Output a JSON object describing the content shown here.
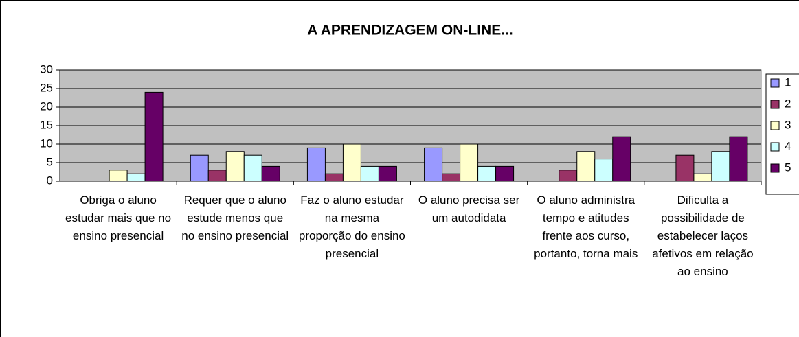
{
  "chart_data": {
    "type": "bar",
    "title": "A APRENDIZAGEM ON-LINE...",
    "categories": [
      "Obriga o aluno estudar mais que no ensino presencial",
      "Requer que o aluno estude menos que no ensino presencial",
      "Faz o aluno estudar na mesma proporção do ensino presencial",
      "O aluno precisa ser um autodidata",
      "O aluno administra tempo e atitudes frente aos curso, portanto, torna mais",
      "Dificulta a possibilidade de estabelecer laços afetivos em relação ao ensino"
    ],
    "series": [
      {
        "name": "1",
        "color": "#9999ff",
        "values": [
          0,
          7,
          9,
          9,
          0,
          0
        ]
      },
      {
        "name": "2",
        "color": "#993366",
        "values": [
          0,
          3,
          2,
          2,
          3,
          7
        ]
      },
      {
        "name": "3",
        "color": "#ffffcc",
        "values": [
          3,
          8,
          10,
          10,
          8,
          2
        ]
      },
      {
        "name": "4",
        "color": "#ccffff",
        "values": [
          2,
          7,
          4,
          4,
          6,
          8
        ]
      },
      {
        "name": "5",
        "color": "#660066",
        "values": [
          24,
          4,
          4,
          4,
          12,
          12
        ]
      }
    ],
    "ylim": [
      0,
      30
    ],
    "yticks": [
      0,
      5,
      10,
      15,
      20,
      25,
      30
    ],
    "grid": true,
    "legend": "right"
  }
}
